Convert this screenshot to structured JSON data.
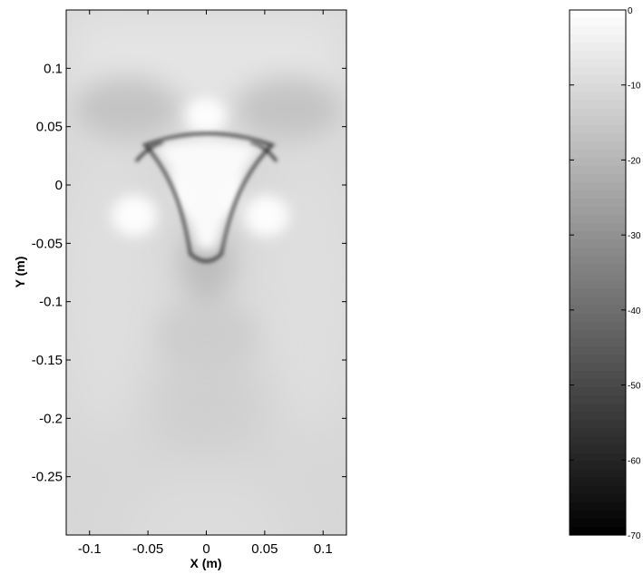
{
  "chart_data": {
    "type": "heatmap",
    "title": "",
    "xlabel": "X (m)",
    "ylabel": "Y (m)",
    "xlim": [
      -0.12,
      0.12
    ],
    "ylim": [
      -0.3,
      0.15
    ],
    "xticks": [
      {
        "value": -0.1,
        "label": "-0.1"
      },
      {
        "value": -0.05,
        "label": "-0.05"
      },
      {
        "value": 0,
        "label": "0"
      },
      {
        "value": 0.05,
        "label": "0.05"
      },
      {
        "value": 0.1,
        "label": "0.1"
      }
    ],
    "yticks": [
      {
        "value": 0.1,
        "label": "0.1"
      },
      {
        "value": 0.05,
        "label": "0.05"
      },
      {
        "value": 0,
        "label": "0"
      },
      {
        "value": -0.05,
        "label": "-0.05"
      },
      {
        "value": -0.1,
        "label": "-0.1"
      },
      {
        "value": -0.15,
        "label": "-0.15"
      },
      {
        "value": -0.2,
        "label": "-0.2"
      },
      {
        "value": -0.25,
        "label": "-0.25"
      }
    ],
    "colormap": "gray",
    "colorbar": {
      "range": [
        -70,
        0
      ],
      "ticks": [
        {
          "value": 0,
          "label": "0"
        },
        {
          "value": -10,
          "label": "-10"
        },
        {
          "value": -20,
          "label": "-20"
        },
        {
          "value": -30,
          "label": "-30"
        },
        {
          "value": -40,
          "label": "-40"
        },
        {
          "value": -50,
          "label": "-50"
        },
        {
          "value": -60,
          "label": "-60"
        },
        {
          "value": -70,
          "label": "-70"
        }
      ]
    },
    "grid": false
  }
}
